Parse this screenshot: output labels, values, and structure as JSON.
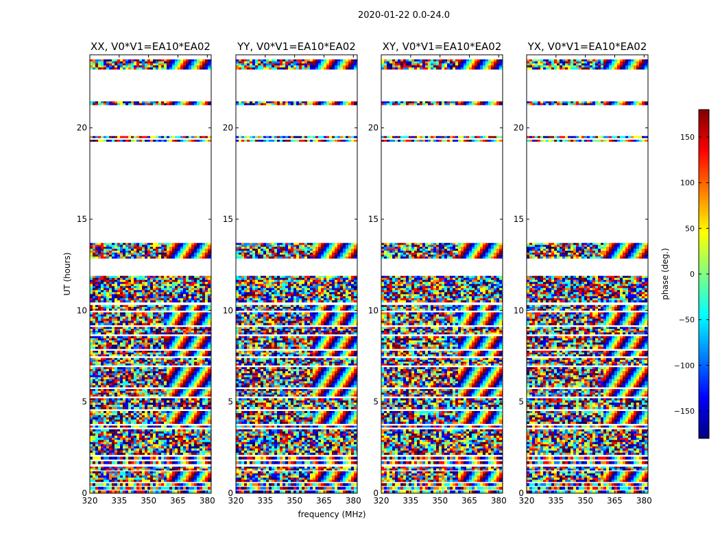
{
  "chart_data": {
    "type": "heatmap",
    "suptitle": "2020-01-22 0.0-24.0",
    "xlabel": "frequency (MHz)",
    "ylabel": "UT (hours)",
    "xlim": [
      320,
      382
    ],
    "ylim": [
      0,
      24
    ],
    "xticks": [
      320,
      335,
      350,
      365,
      380
    ],
    "yticks": [
      0,
      5,
      10,
      15,
      20
    ],
    "panels": [
      {
        "title": "XX, V0*V1=EA10*EA02",
        "pol": "XX"
      },
      {
        "title": "YY, V0*V1=EA10*EA02",
        "pol": "YY"
      },
      {
        "title": "XY, V0*V1=EA10*EA02",
        "pol": "XY"
      },
      {
        "title": "YX, V0*V1=EA10*EA02",
        "pol": "YX"
      }
    ],
    "data_bands_hours": [
      [
        0.0,
        0.15
      ],
      [
        0.2,
        0.35
      ],
      [
        0.4,
        0.55
      ],
      [
        0.62,
        1.2
      ],
      [
        1.25,
        1.45
      ],
      [
        1.6,
        1.75
      ],
      [
        1.85,
        2.0
      ],
      [
        2.1,
        3.5
      ],
      [
        3.6,
        3.7
      ],
      [
        3.8,
        4.5
      ],
      [
        4.6,
        5.2
      ],
      [
        5.3,
        5.7
      ],
      [
        5.8,
        6.9
      ],
      [
        7.0,
        7.4
      ],
      [
        7.5,
        7.8
      ],
      [
        7.9,
        8.6
      ],
      [
        8.7,
        9.1
      ],
      [
        9.2,
        9.9
      ],
      [
        10.0,
        10.3
      ],
      [
        10.45,
        11.9
      ],
      [
        12.85,
        13.7
      ],
      [
        19.25,
        19.35
      ],
      [
        19.45,
        19.55
      ],
      [
        21.25,
        21.45
      ],
      [
        23.2,
        23.75
      ]
    ],
    "colorbar": {
      "label": "phase (deg.)",
      "range": [
        -180,
        180
      ],
      "ticks": [
        -150,
        -100,
        -50,
        0,
        50,
        100,
        150
      ],
      "tick_labels": [
        "−150",
        "−100",
        "−50",
        "0",
        "50",
        "100",
        "150"
      ],
      "colormap": "jet",
      "colors": [
        "#000080",
        "#0000ff",
        "#0080ff",
        "#00ffff",
        "#80ff80",
        "#ffff00",
        "#ff8000",
        "#ff0000",
        "#800000"
      ]
    }
  }
}
